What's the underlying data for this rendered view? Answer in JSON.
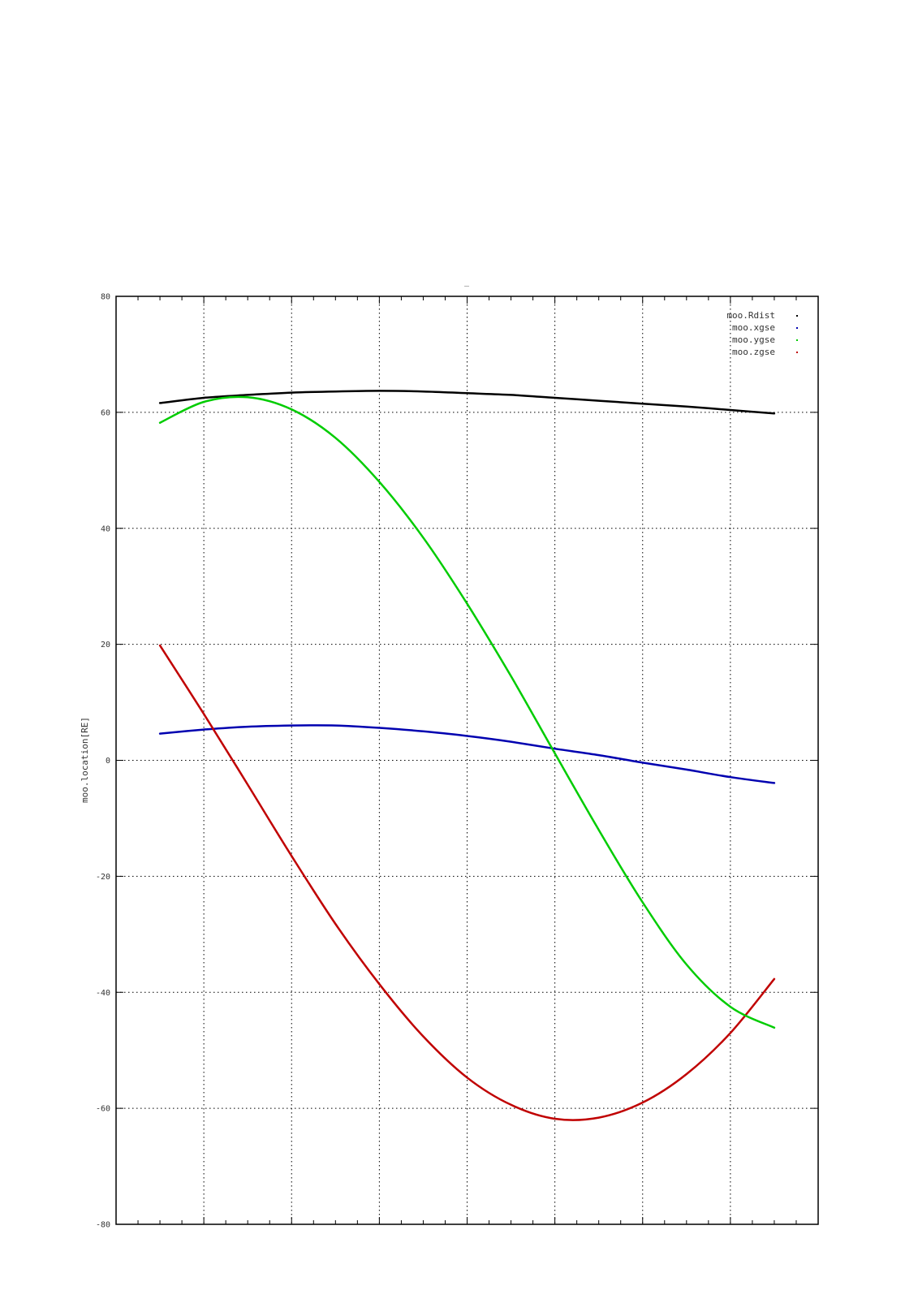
{
  "chart_data": {
    "type": "line",
    "title": "_",
    "xlabel": "",
    "ylabel": "moo.location[RE]",
    "ylim": [
      -80,
      80
    ],
    "yticks": [
      80,
      60,
      40,
      20,
      0,
      -20,
      -40,
      -60,
      -80
    ],
    "xlim": [
      0,
      8
    ],
    "x_major_ticks": [
      0,
      1,
      2,
      3,
      4,
      5,
      6,
      7,
      8
    ],
    "x_minor_ticks": [
      0.25,
      0.5,
      0.75,
      1.25,
      1.5,
      1.75,
      2.25,
      2.5,
      2.75,
      3.25,
      3.5,
      3.75,
      4.25,
      4.5,
      4.75,
      5.25,
      5.5,
      5.75,
      6.25,
      6.5,
      6.75,
      7.25,
      7.5,
      7.75
    ],
    "grid": true,
    "legend_position": "top-right",
    "x": [
      0.5,
      1.0,
      1.5,
      2.0,
      2.5,
      3.0,
      3.5,
      4.0,
      4.5,
      5.0,
      5.5,
      6.0,
      6.5,
      7.0,
      7.5
    ],
    "series": [
      {
        "name": "moo.Rdist",
        "color": "#000000",
        "values": [
          61.6,
          62.5,
          63.0,
          63.4,
          63.6,
          63.7,
          63.6,
          63.3,
          63.0,
          62.5,
          62.0,
          61.5,
          61.0,
          60.4,
          59.8
        ]
      },
      {
        "name": "moo.xgse",
        "color": "#0000b0",
        "values": [
          4.6,
          5.3,
          5.8,
          6.0,
          6.0,
          5.6,
          5.0,
          4.2,
          3.2,
          2.0,
          0.9,
          -0.4,
          -1.6,
          -2.9,
          -3.9
        ]
      },
      {
        "name": "moo.ygse",
        "color": "#00cc00",
        "values": [
          58.2,
          61.8,
          62.6,
          60.5,
          55.6,
          48.0,
          38.4,
          27.0,
          14.5,
          1.2,
          -12.0,
          -24.5,
          -35.2,
          -42.5,
          -46.1
        ]
      },
      {
        "name": "moo.zgse",
        "color": "#c00000",
        "values": [
          19.8,
          8.0,
          -4.2,
          -16.5,
          -28.2,
          -38.6,
          -47.6,
          -54.7,
          -59.4,
          -61.8,
          -61.6,
          -59.0,
          -54.1,
          -47.0,
          -37.7
        ]
      }
    ]
  }
}
